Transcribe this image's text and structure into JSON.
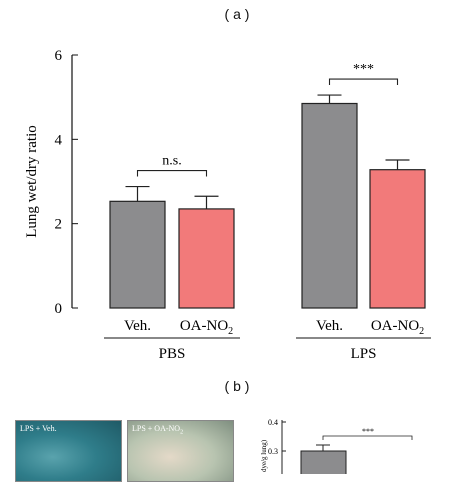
{
  "panel_a_label": "( a )",
  "panel_b_label": "( b )",
  "chart_data": [
    {
      "type": "bar",
      "ylabel": "Lung wet/dry ratio",
      "ylim": [
        0,
        6
      ],
      "yticks": [
        "0",
        "2",
        "4",
        "6"
      ],
      "groups": [
        "PBS",
        "LPS"
      ],
      "categories": [
        "Veh.",
        "OA-NO2",
        "Veh.",
        "OA-NO2"
      ],
      "category_display": [
        "Veh.",
        "OA-NO",
        "Veh.",
        "OA-NO"
      ],
      "category_subscript": [
        "",
        "2",
        "",
        "2"
      ],
      "values": [
        2.53,
        2.35,
        4.85,
        3.28
      ],
      "errors": [
        0.35,
        0.3,
        0.2,
        0.23
      ],
      "colors": [
        "#8c8c8e",
        "#f27a7a",
        "#8c8c8e",
        "#f27a7a"
      ],
      "annotations": [
        {
          "text": "n.s.",
          "between": [
            0,
            1
          ]
        },
        {
          "text": "***",
          "between": [
            2,
            3
          ]
        }
      ]
    },
    {
      "type": "bar",
      "ylabel": "dye/g lung)",
      "yticks": [
        "0.3",
        "0.4"
      ],
      "values": [
        0.3
      ],
      "annotations": [
        {
          "text": "***"
        }
      ]
    }
  ],
  "photos": [
    {
      "caption": "LPS + Veh.",
      "color": "#2f7d8a"
    },
    {
      "caption": "LPS + OA-NO2",
      "caption_display": "LPS + OA-NO",
      "caption_subscript": "2",
      "color": "#b8c4b0"
    }
  ]
}
